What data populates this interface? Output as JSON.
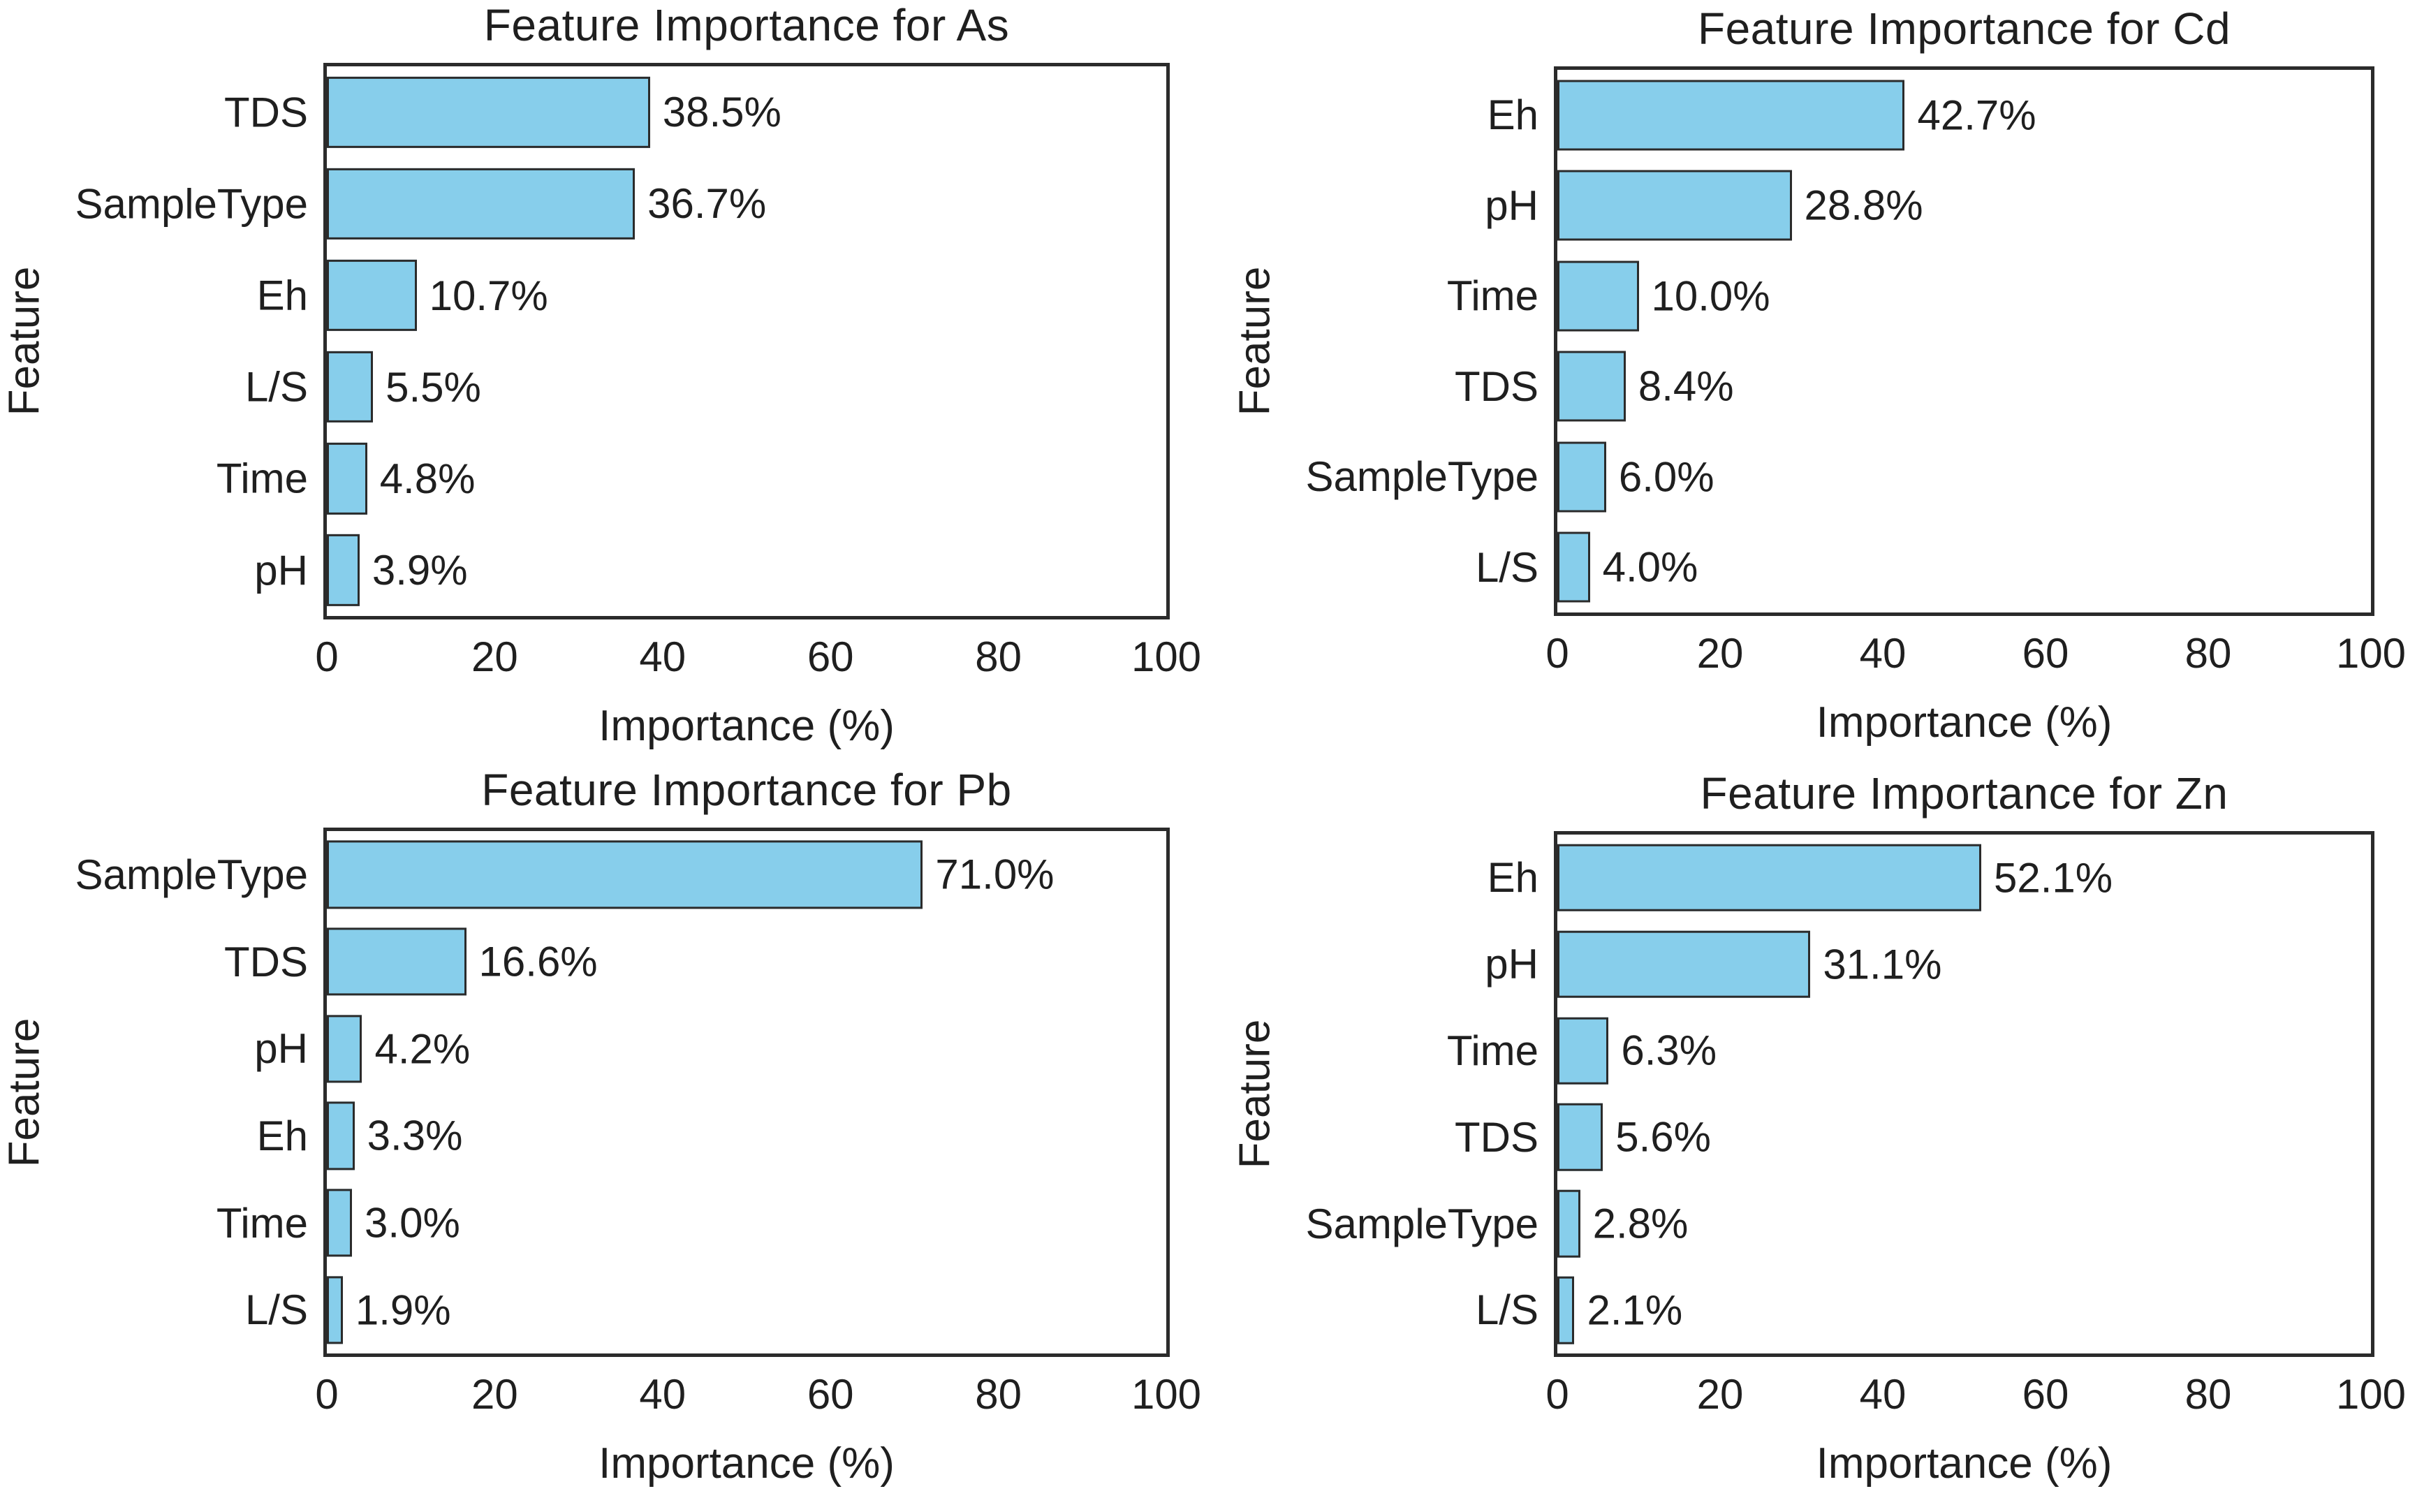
{
  "figure": {
    "background": "#ffffff",
    "bar_fill": "#87CEEB",
    "bar_edge": "#2b2b2b",
    "axis_color": "#2b2b2b",
    "text_color": "#1f1f1f"
  },
  "chart_data": [
    {
      "type": "bar",
      "orientation": "horizontal",
      "title": "Feature Importance for As",
      "xlabel": "Importance (%)",
      "ylabel": "Feature",
      "xlim": [
        0,
        100
      ],
      "xticks": [
        0,
        20,
        40,
        60,
        80,
        100
      ],
      "grid": false,
      "categories": [
        "TDS",
        "SampleType",
        "Eh",
        "L/S",
        "Time",
        "pH"
      ],
      "values": [
        38.5,
        36.7,
        10.7,
        5.5,
        4.8,
        3.9
      ],
      "value_labels": [
        "38.5%",
        "36.7%",
        "10.7%",
        "5.5%",
        "4.8%",
        "3.9%"
      ]
    },
    {
      "type": "bar",
      "orientation": "horizontal",
      "title": "Feature Importance for Cd",
      "xlabel": "Importance (%)",
      "ylabel": "Feature",
      "xlim": [
        0,
        100
      ],
      "xticks": [
        0,
        20,
        40,
        60,
        80,
        100
      ],
      "grid": false,
      "categories": [
        "Eh",
        "pH",
        "Time",
        "TDS",
        "SampleType",
        "L/S"
      ],
      "values": [
        42.7,
        28.8,
        10.0,
        8.4,
        6.0,
        4.0
      ],
      "value_labels": [
        "42.7%",
        "28.8%",
        "10.0%",
        "8.4%",
        "6.0%",
        "4.0%"
      ]
    },
    {
      "type": "bar",
      "orientation": "horizontal",
      "title": "Feature Importance for Pb",
      "xlabel": "Importance (%)",
      "ylabel": "Feature",
      "xlim": [
        0,
        100
      ],
      "xticks": [
        0,
        20,
        40,
        60,
        80,
        100
      ],
      "grid": false,
      "categories": [
        "SampleType",
        "TDS",
        "pH",
        "Eh",
        "Time",
        "L/S"
      ],
      "values": [
        71.0,
        16.6,
        4.2,
        3.3,
        3.0,
        1.9
      ],
      "value_labels": [
        "71.0%",
        "16.6%",
        "4.2%",
        "3.3%",
        "3.0%",
        "1.9%"
      ]
    },
    {
      "type": "bar",
      "orientation": "horizontal",
      "title": "Feature Importance for Zn",
      "xlabel": "Importance (%)",
      "ylabel": "Feature",
      "xlim": [
        0,
        100
      ],
      "xticks": [
        0,
        20,
        40,
        60,
        80,
        100
      ],
      "grid": false,
      "categories": [
        "Eh",
        "pH",
        "Time",
        "TDS",
        "SampleType",
        "L/S"
      ],
      "values": [
        52.1,
        31.1,
        6.3,
        5.6,
        2.8,
        2.1
      ],
      "value_labels": [
        "52.1%",
        "31.1%",
        "6.3%",
        "5.6%",
        "2.8%",
        "2.1%"
      ]
    }
  ]
}
